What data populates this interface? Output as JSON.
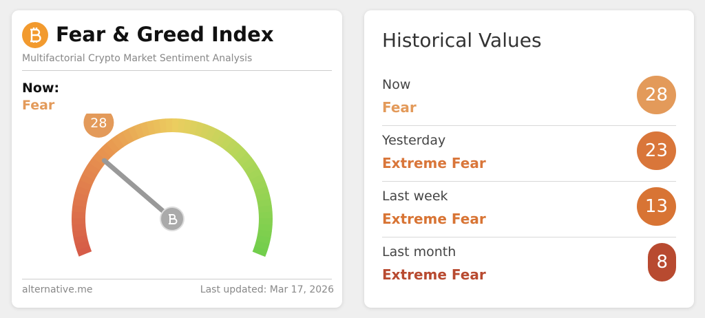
{
  "index_card": {
    "title": "Fear & Greed Index",
    "subtitle": "Multifactorial Crypto Market Sentiment Analysis",
    "now_label": "Now:",
    "now_classification": "Fear",
    "now_color": "#e39a5a",
    "value": 28,
    "gauge_range": [
      0,
      100
    ],
    "source": "alternative.me",
    "last_updated": "Last updated: Mar 17, 2026"
  },
  "historical": {
    "title": "Historical Values",
    "rows": [
      {
        "period": "Now",
        "classification": "Fear",
        "value": 28,
        "color": "#e39a5a"
      },
      {
        "period": "Yesterday",
        "classification": "Extreme Fear",
        "value": 23,
        "color": "#d9763a"
      },
      {
        "period": "Last week",
        "classification": "Extreme Fear",
        "value": 13,
        "color": "#d87434"
      },
      {
        "period": "Last month",
        "classification": "Extreme Fear",
        "value": 8,
        "color": "#b84a30"
      }
    ]
  }
}
